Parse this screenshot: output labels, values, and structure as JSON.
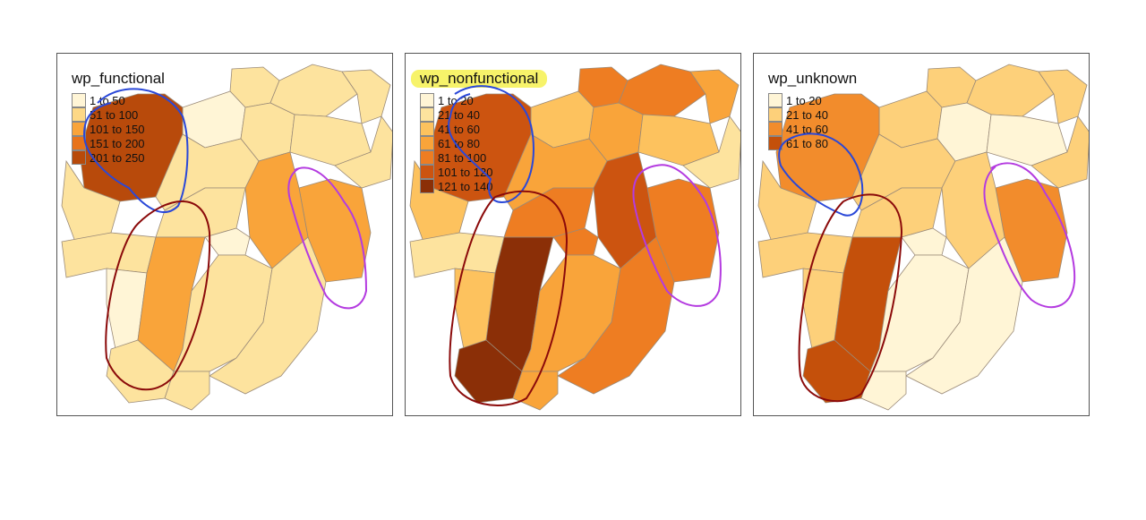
{
  "panels": [
    {
      "title": "wp_functional",
      "highlight_title": false,
      "legend": [
        {
          "label": "1 to 50",
          "color": "#fff5d6"
        },
        {
          "label": "51 to 100",
          "color": "#fdd886"
        },
        {
          "label": "101 to 150",
          "color": "#f9a43a"
        },
        {
          "label": "151 to 200",
          "color": "#e8731a"
        },
        {
          "label": "201 to 250",
          "color": "#b84a0b"
        }
      ]
    },
    {
      "title": "wp_nonfunctional",
      "highlight_title": true,
      "legend": [
        {
          "label": "1 to 20",
          "color": "#fff5d6"
        },
        {
          "label": "21 to 40",
          "color": "#fde39e"
        },
        {
          "label": "41 to 60",
          "color": "#fdc25e"
        },
        {
          "label": "61 to 80",
          "color": "#f9a43a"
        },
        {
          "label": "81 to 100",
          "color": "#ee7d22"
        },
        {
          "label": "101 to 120",
          "color": "#cc5410"
        },
        {
          "label": "121 to 140",
          "color": "#8b2f07"
        }
      ]
    },
    {
      "title": "wp_unknown",
      "highlight_title": false,
      "legend": [
        {
          "label": "1 to 20",
          "color": "#fff5d6"
        },
        {
          "label": "21 to 40",
          "color": "#fdd07a"
        },
        {
          "label": "41 to 60",
          "color": "#f28c2c"
        },
        {
          "label": "61 to 80",
          "color": "#c4500b"
        }
      ]
    }
  ],
  "annotation_colors": {
    "blue": "#2a48d8",
    "red": "#8b0a0a",
    "purple": "#b43be0"
  }
}
